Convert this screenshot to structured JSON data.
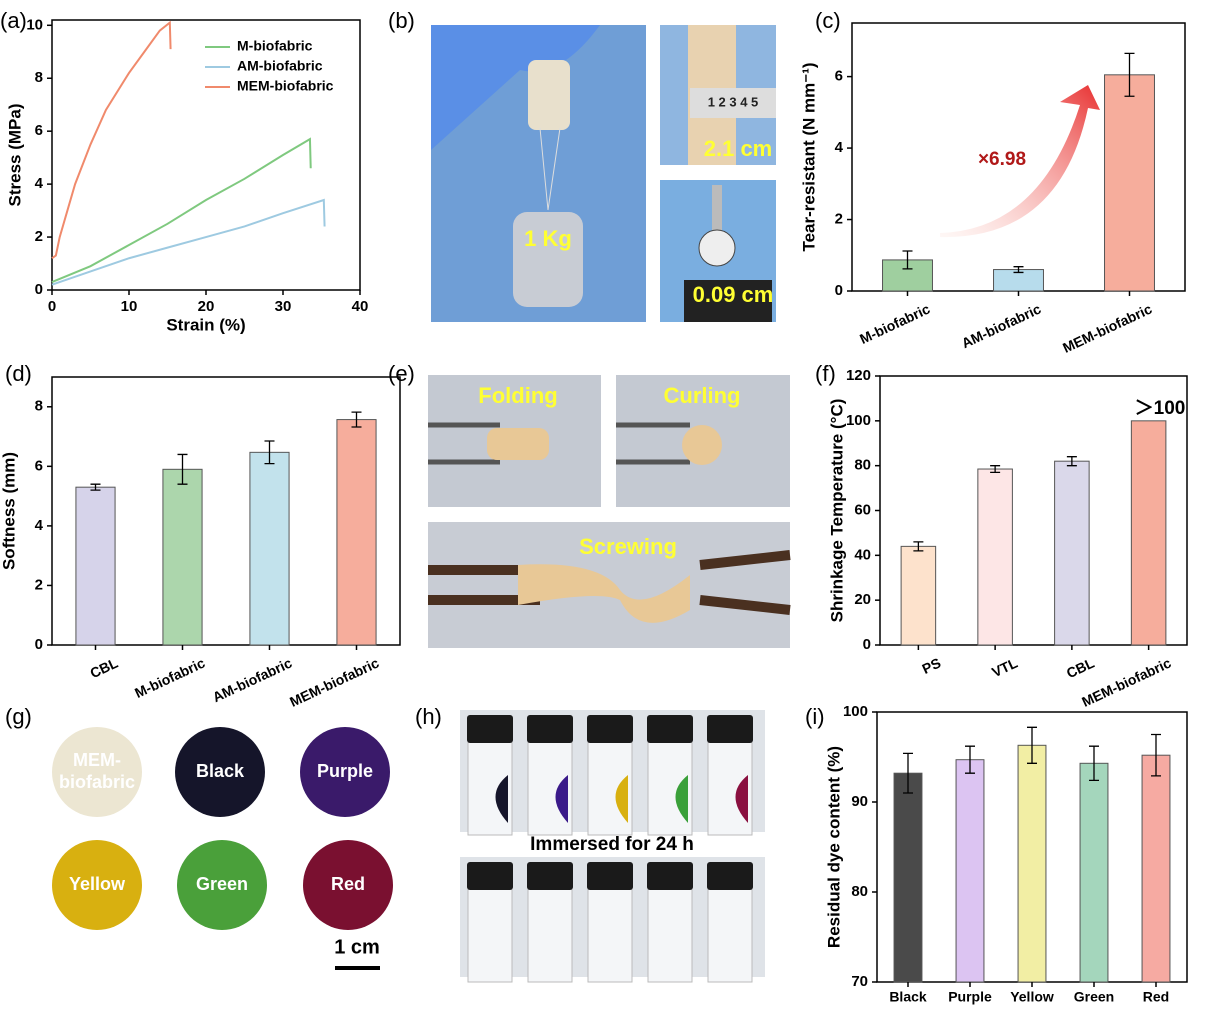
{
  "chart_data": [
    {
      "type": "line",
      "panel": "(a)",
      "xlabel": "Strain (%)",
      "ylabel": "Stress (MPa)",
      "xlim": [
        0,
        40
      ],
      "xticks": [
        0,
        10,
        20,
        30,
        40
      ],
      "ylim": [
        0,
        10.2
      ],
      "yticks": [
        0,
        2,
        4,
        6,
        8,
        10
      ],
      "series": [
        {
          "name": "M-biofabric",
          "color": "#7fc97f",
          "x": [
            0,
            5,
            10,
            15,
            20,
            25,
            30,
            33.5,
            33.6
          ],
          "values": [
            0.3,
            0.9,
            1.7,
            2.5,
            3.4,
            4.2,
            5.1,
            5.7,
            4.6
          ]
        },
        {
          "name": "AM-biofabric",
          "color": "#9ecae1",
          "x": [
            0,
            5,
            10,
            15,
            20,
            25,
            30,
            35.3,
            35.4
          ],
          "values": [
            0.2,
            0.7,
            1.2,
            1.6,
            2.0,
            2.4,
            2.9,
            3.4,
            2.4
          ]
        },
        {
          "name": "MEM-biofabric",
          "color": "#f08a6c",
          "x": [
            0,
            0.5,
            1,
            2,
            3,
            5,
            7,
            10,
            12,
            14,
            15.3,
            15.4
          ],
          "values": [
            1.2,
            1.3,
            2.0,
            3.0,
            4.0,
            5.5,
            6.8,
            8.2,
            9.0,
            9.8,
            10.1,
            9.1
          ]
        }
      ]
    },
    {
      "type": "bar",
      "panel": "(c)",
      "ylabel": "Tear-resistant (N mm⁻¹)",
      "annotation": "×6.98",
      "categories": [
        "M-biofabric",
        "AM-biofabric",
        "MEM-biofabric"
      ],
      "values": [
        0.87,
        0.6,
        6.05
      ],
      "errors": [
        0.25,
        0.08,
        0.6
      ],
      "colors": [
        "#9fcf9f",
        "#b7dcec",
        "#f6ad9c"
      ],
      "ylim": [
        0,
        7.5
      ],
      "yticks": [
        0,
        2,
        4,
        6
      ]
    },
    {
      "type": "bar",
      "panel": "(d)",
      "ylabel": "Softness (mm)",
      "categories": [
        "CBL",
        "M-biofabric",
        "AM-biofabric",
        "MEM-biofabric"
      ],
      "values": [
        5.3,
        5.9,
        6.47,
        7.57
      ],
      "errors": [
        0.1,
        0.5,
        0.38,
        0.25
      ],
      "colors": [
        "#d6d3ea",
        "#acd6ac",
        "#c2e2ec",
        "#f6ad9c"
      ],
      "ylim": [
        0,
        9
      ],
      "yticks": [
        0,
        2,
        4,
        6,
        8
      ]
    },
    {
      "type": "bar",
      "panel": "(f)",
      "ylabel": "Shrinkage Temperature (°C)",
      "annotation": "＞100",
      "categories": [
        "PS",
        "VTL",
        "CBL",
        "MEM-biofabric"
      ],
      "values": [
        44,
        78.5,
        82,
        100
      ],
      "errors": [
        2,
        1.5,
        2,
        null
      ],
      "colors": [
        "#fde2cc",
        "#fde6e6",
        "#dad8ea",
        "#f6ad9c"
      ],
      "ylim": [
        0,
        120
      ],
      "yticks": [
        0,
        20,
        40,
        60,
        80,
        100,
        120
      ]
    },
    {
      "type": "bar",
      "panel": "(i)",
      "ylabel": "Residual dye content (%)",
      "categories": [
        "Black",
        "Purple",
        "Yellow",
        "Green",
        "Red"
      ],
      "values": [
        93.2,
        94.7,
        96.3,
        94.3,
        95.2
      ],
      "errors": [
        2.2,
        1.5,
        2,
        1.9,
        2.3
      ],
      "colors": [
        "#4a4a4a",
        "#dcc4f2",
        "#f2eea4",
        "#a4d6bc",
        "#f6aaa2"
      ],
      "ylim": [
        70,
        100
      ],
      "yticks": [
        70,
        80,
        90,
        100
      ]
    }
  ],
  "photos": {
    "b": {
      "panel": "(b)",
      "weight": "1 Kg",
      "width": "2.1 cm",
      "thickness": "0.09 cm",
      "ruler": "1 2 3 4 5"
    },
    "e": {
      "panel": "(e)",
      "folding": "Folding",
      "curling": "Curling",
      "screwing": "Screwing"
    },
    "g": {
      "panel": "(g)",
      "samples": [
        [
          "MEM-",
          "biofabric"
        ],
        [
          "Black"
        ],
        [
          "Purple"
        ],
        [
          "Yellow"
        ],
        [
          "Green"
        ],
        [
          "Red"
        ]
      ],
      "scale": "1 cm"
    },
    "h": {
      "panel": "(h)",
      "caption": "Immersed for 24 h"
    }
  }
}
